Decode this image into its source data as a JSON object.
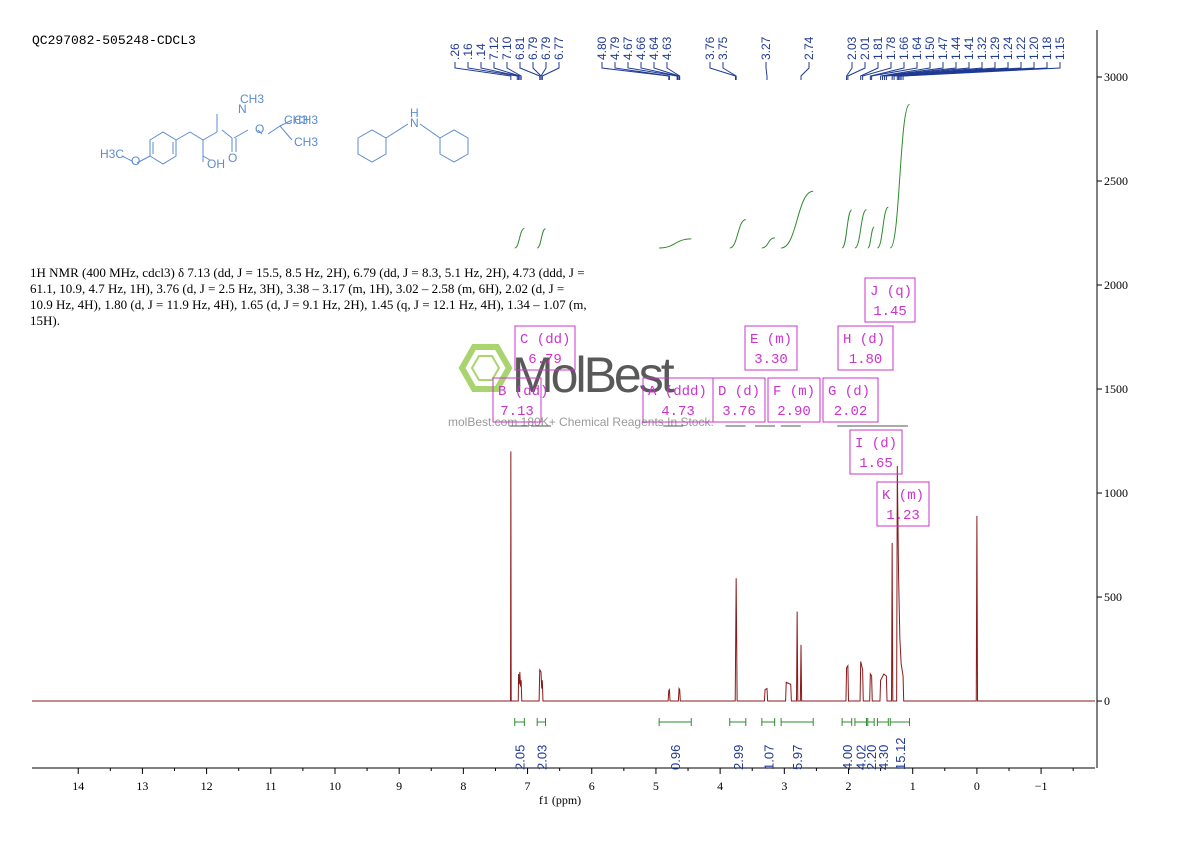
{
  "title": "QC297082-505248-CDCL3",
  "description": "1H NMR (400 MHz, cdcl3) δ 7.13 (dd, J = 15.5, 8.5 Hz, 2H), 6.79 (dd, J = 8.3, 5.1 Hz, 2H), 4.73 (ddd, J = 61.1, 10.9, 4.7 Hz, 1H), 3.76 (d, J = 2.5 Hz, 3H), 3.38 – 3.17 (m, 1H), 3.02 – 2.58 (m, 6H), 2.02 (d, J = 10.9 Hz, 4H), 1.80 (d, J = 11.9 Hz, 4H), 1.65 (d, J = 9.1 Hz, 2H), 1.45 (q, J = 12.1 Hz, 4H), 1.34 – 1.07 (m, 15H).",
  "watermark": {
    "brand": "MolBest",
    "tagline": "molBest.com 180K+ Chemical Reagents In Stock."
  },
  "structure": {
    "labels": [
      "H3C",
      "O",
      "N",
      "CH3",
      "O",
      "O",
      "OH",
      "CH3",
      "CH3",
      "CH3",
      "H",
      "N"
    ]
  },
  "chart_data": {
    "type": "line",
    "xlabel": "f1 (ppm)",
    "xlim": [
      14.72,
      -1.84
    ],
    "ylim": [
      -322,
      3226
    ],
    "xticks": [
      14,
      13,
      12,
      11,
      10,
      9,
      8,
      7,
      6,
      5,
      4,
      3,
      2,
      1,
      0,
      {
        "value": -1,
        "label": "−1"
      }
    ],
    "yticks": [
      0,
      500,
      1000,
      1500,
      2000,
      2500,
      3000
    ],
    "color": "#8b1a1a",
    "x": [
      14.72,
      7.265,
      7.26,
      7.255,
      7.145,
      7.14,
      7.13,
      7.12,
      7.11,
      7.1,
      7.09,
      6.82,
      6.81,
      6.79,
      6.78,
      6.77,
      6.76,
      4.81,
      4.8,
      4.79,
      4.78,
      4.65,
      4.64,
      4.63,
      4.62,
      3.765,
      3.75,
      3.735,
      3.31,
      3.3,
      3.27,
      3.26,
      2.98,
      2.97,
      2.9,
      2.89,
      2.81,
      2.8,
      2.79,
      2.75,
      2.74,
      2.73,
      2.04,
      2.03,
      2.01,
      2.0,
      1.82,
      1.81,
      1.78,
      1.77,
      1.67,
      1.66,
      1.64,
      1.63,
      1.51,
      1.5,
      1.45,
      1.41,
      1.4,
      1.33,
      1.32,
      1.31,
      1.25,
      1.24,
      1.22,
      1.2,
      1.18,
      1.15,
      1.14,
      0.01,
      0.0,
      -0.01,
      -1.84
    ],
    "values": [
      0,
      0,
      1200,
      0,
      0,
      130,
      80,
      140,
      70,
      100,
      0,
      0,
      150,
      140,
      60,
      100,
      0,
      0,
      50,
      55,
      0,
      0,
      60,
      55,
      0,
      0,
      590,
      0,
      0,
      55,
      60,
      0,
      0,
      90,
      80,
      0,
      0,
      430,
      0,
      0,
      270,
      0,
      0,
      160,
      170,
      0,
      0,
      190,
      150,
      0,
      0,
      130,
      120,
      0,
      0,
      100,
      130,
      120,
      0,
      0,
      760,
      0,
      0,
      1130,
      600,
      300,
      180,
      120,
      0,
      0,
      890,
      0,
      0
    ],
    "peak_labels": [
      {
        "value": 7.26,
        "label": ".26"
      },
      {
        "value": 7.16,
        "label": ".16"
      },
      {
        "value": 7.14,
        "label": ".14"
      },
      7.12,
      {
        "value": 7.1,
        "label": "7.10"
      },
      6.81,
      6.79,
      6.79,
      6.77,
      {
        "value": 4.8,
        "label": "4.80"
      },
      4.79,
      4.67,
      4.66,
      4.64,
      4.63,
      3.76,
      3.75,
      3.27,
      2.74,
      2.03,
      2.01,
      1.81,
      1.78,
      1.66,
      1.64,
      {
        "value": 1.5,
        "label": "1.50"
      },
      1.47,
      1.44,
      1.41,
      1.32,
      1.29,
      1.24,
      1.22,
      {
        "value": 1.2,
        "label": "1.20"
      },
      1.18,
      1.15
    ],
    "integrals": [
      {
        "from": 7.2,
        "to": 7.05,
        "value": 2.05
      },
      {
        "from": 6.85,
        "to": 6.72,
        "value": 2.03
      },
      {
        "from": 4.95,
        "to": 4.45,
        "value": 0.96
      },
      {
        "from": 3.85,
        "to": 3.6,
        "value": 2.99
      },
      {
        "from": 3.35,
        "to": 3.15,
        "value": 1.07
      },
      {
        "from": 3.05,
        "to": 2.55,
        "value": 5.97
      },
      {
        "from": 2.1,
        "to": 1.95,
        "value": {
          "value": 4.0,
          "label": "4.00"
        }
      },
      {
        "from": 1.9,
        "to": 1.72,
        "value": 4.02
      },
      {
        "from": 1.7,
        "to": 1.6,
        "value": {
          "value": 2.2,
          "label": "2.20"
        }
      },
      {
        "from": 1.55,
        "to": 1.38,
        "value": {
          "value": 4.3,
          "label": "4.30"
        }
      },
      {
        "from": 1.35,
        "to": 1.05,
        "value": 15.12
      }
    ],
    "multiplets": [
      {
        "label": "A (ddd)",
        "shift": 4.73
      },
      {
        "label": "B (dd)",
        "shift": 7.13
      },
      {
        "label": "C (dd)",
        "shift": 6.79
      },
      {
        "label": "D (d)",
        "shift": 3.76
      },
      {
        "label": "E (m)",
        "shift": {
          "value": 3.3,
          "label": "3.30"
        }
      },
      {
        "label": "F (m)",
        "shift": {
          "value": 2.9,
          "label": "2.90"
        }
      },
      {
        "label": "G (d)",
        "shift": 2.02
      },
      {
        "label": "H (d)",
        "shift": {
          "value": 1.8,
          "label": "1.80"
        }
      },
      {
        "label": "I (d)",
        "shift": 1.65
      },
      {
        "label": "J (q)",
        "shift": 1.45
      },
      {
        "label": "K (m)",
        "shift": 1.23
      }
    ]
  }
}
